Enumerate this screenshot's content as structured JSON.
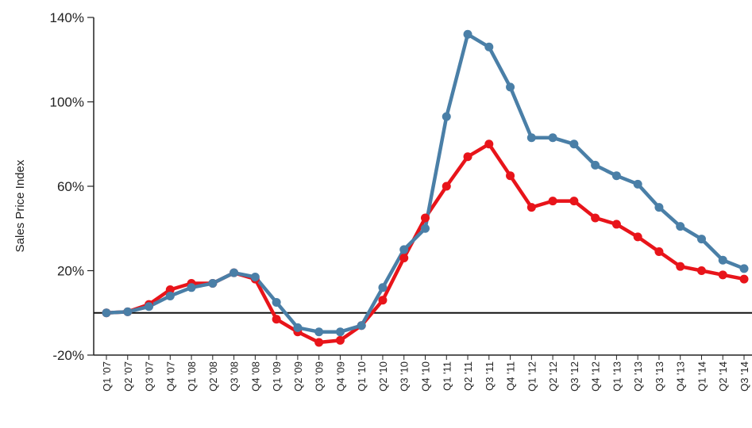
{
  "chart_data": {
    "type": "line",
    "title": "",
    "xlabel": "",
    "ylabel": "Sales Price Index",
    "ylim": [
      -20,
      140
    ],
    "yticks": [
      "-20%",
      "20%",
      "60%",
      "100%",
      "140%"
    ],
    "grid": false,
    "zero_line": true,
    "categories": [
      "Q1 '07",
      "Q2 '07",
      "Q3 '07",
      "Q4 '07",
      "Q1 '08",
      "Q2 '08",
      "Q3 '08",
      "Q4 '08",
      "Q1 '09",
      "Q2 '09",
      "Q3 '09",
      "Q4 '09",
      "Q1 '10",
      "Q2 '10",
      "Q3 '10",
      "Q4 '10",
      "Q1 '11",
      "Q2 '11",
      "Q3 '11",
      "Q4 '11",
      "Q1 '12",
      "Q2 '12",
      "Q3 '12",
      "Q4 '12",
      "Q1 '13",
      "Q2 '13",
      "Q3 '13",
      "Q4 '13",
      "Q1 '14",
      "Q2 '14",
      "Q3 '14"
    ],
    "series": [
      {
        "color": "#e8141a",
        "values": [
          0,
          0.5,
          4,
          11,
          14,
          14,
          19,
          16,
          -3,
          -9,
          -14,
          -13,
          -6,
          6,
          26,
          45,
          60,
          74,
          80,
          65,
          50,
          53,
          53,
          45,
          42,
          36,
          29,
          22,
          20,
          18,
          16
        ]
      },
      {
        "color": "#4a7fa7",
        "values": [
          0,
          0.5,
          3,
          8,
          12,
          14,
          19,
          17,
          5,
          -7,
          -9,
          -9,
          -6,
          12,
          30,
          40,
          93,
          132,
          126,
          107,
          83,
          83,
          80,
          70,
          65,
          61,
          50,
          41,
          35,
          25,
          21
        ]
      }
    ]
  }
}
